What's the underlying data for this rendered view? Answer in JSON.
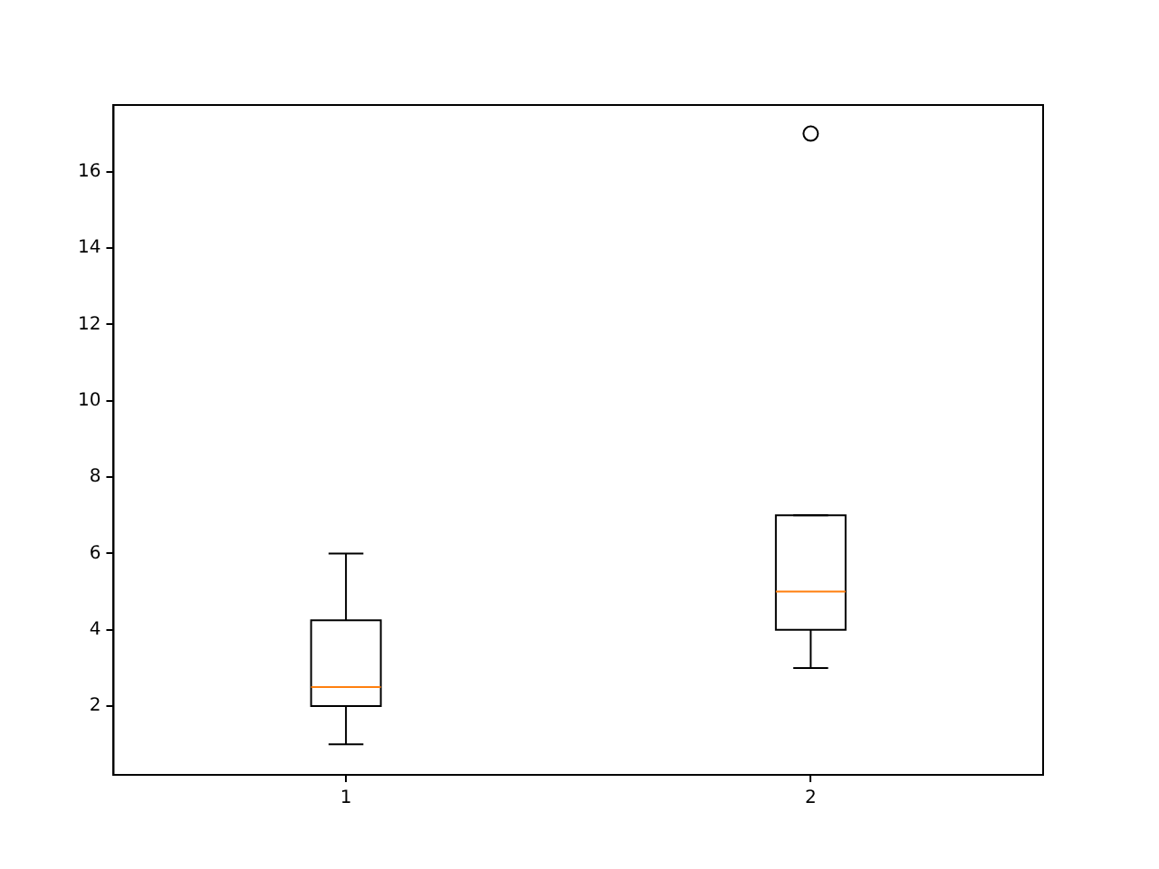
{
  "chart_data": {
    "type": "box",
    "categories": [
      "1",
      "2"
    ],
    "boxes": [
      {
        "low": 1,
        "q1": 2,
        "median": 2.5,
        "q3": 4.25,
        "high": 6
      },
      {
        "low": 3,
        "q1": 4,
        "median": 5,
        "q3": 7,
        "high": 7,
        "outliers": [
          17
        ]
      }
    ],
    "color": "#000000",
    "ylim": [
      0.2,
      17.75
    ],
    "yticks": [
      2,
      4,
      6,
      8,
      10,
      12,
      14,
      16
    ],
    "grid": false,
    "legend": false
  }
}
